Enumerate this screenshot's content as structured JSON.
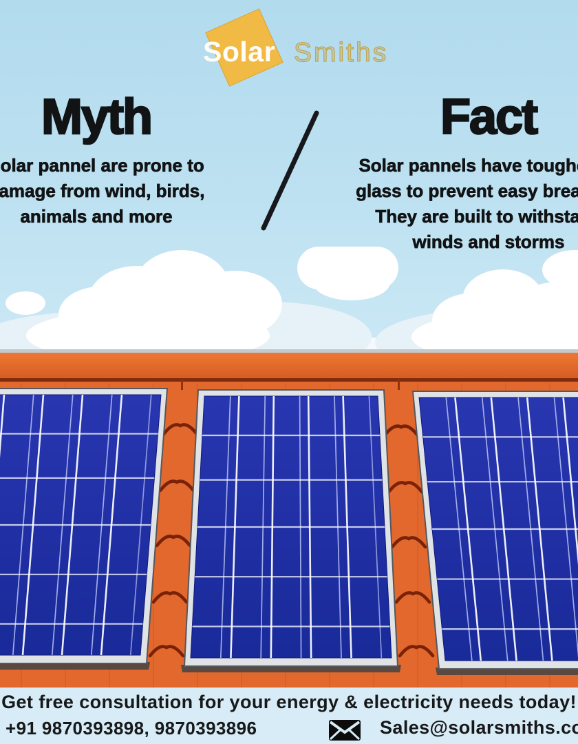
{
  "brand": {
    "logo_primary": "Solar",
    "logo_secondary": "Smiths"
  },
  "myth": {
    "title": "Myth",
    "lines": [
      "Solar pannel are prone to",
      "damage from wind, birds,",
      "animals and more"
    ]
  },
  "fact": {
    "title": "Fact",
    "lines": [
      "Solar pannels have toughened",
      "glass to prevent easy breakage",
      "They are built to withstand",
      "winds and storms"
    ]
  },
  "footer": {
    "headline": "Get free consultation for your energy & electricity needs today!",
    "phone": "+91 9870393898, 9870393896",
    "email": "Sales@solarsmiths.com"
  },
  "illustration": {
    "subject": "three blue solar panels mounted on an orange tiled roof under a cloudy blue sky",
    "panel_count": 3
  },
  "colors": {
    "sky_top": "#b2dbee",
    "sky_bottom": "#cbe8f5",
    "cloud": "#ffffff",
    "roof_orange": "#e2682d",
    "roof_ridge_top": "#ee7832",
    "roof_ridge_bottom": "#d65d23",
    "roof_dark_line": "#7d2c0e",
    "tile_arc": "#7a2208",
    "panel_blue_top": "#2836b0",
    "panel_blue_bottom": "#192a99",
    "panel_frame": "#e0e3e6",
    "panel_frame_edge": "#54585c",
    "panel_shadow": "#4a4643",
    "grid_line": "#ffffff",
    "grid_accent": "#b9c3f6",
    "logo_yellow": "#f1ba44",
    "logo_outline_gold": "#c3a44b",
    "footer_bg": "#d7ecf6",
    "text_black": "#111315"
  }
}
